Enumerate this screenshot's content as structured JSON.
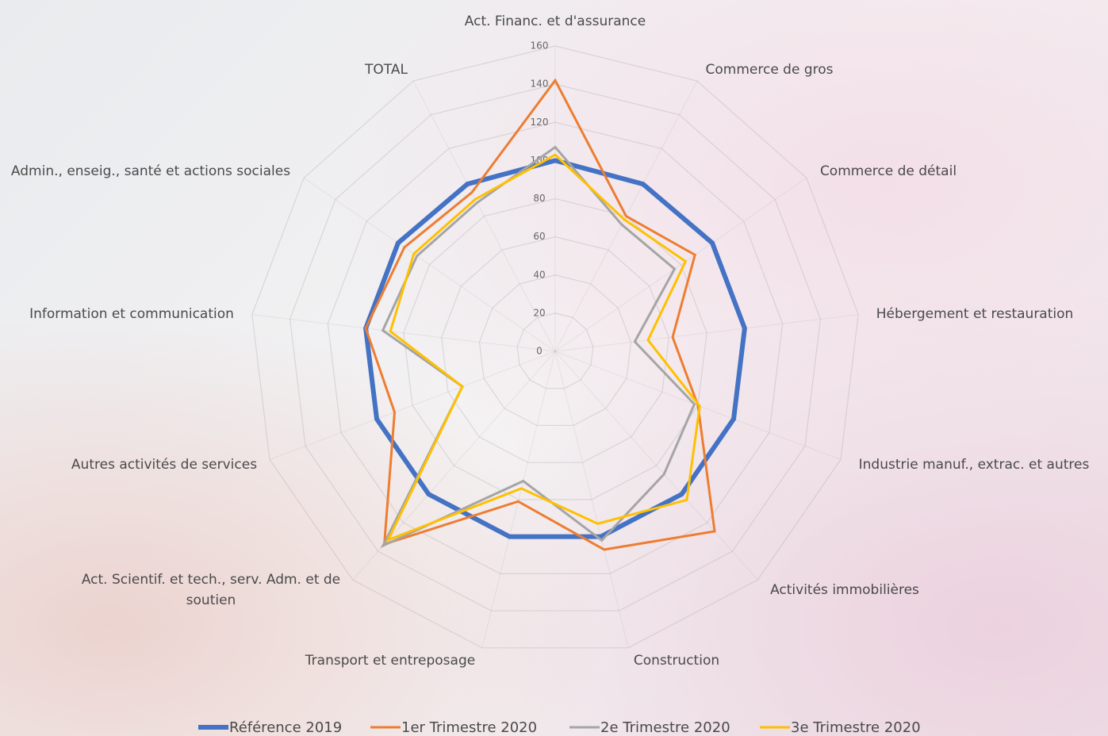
{
  "chart_data": {
    "type": "radar",
    "categories": [
      "Act. Financ. et d'assurance",
      "Commerce de gros",
      "Commerce de détail",
      "Hébergement et restauration",
      "Industrie manuf., extrac. et autres",
      "Activités immobilières",
      "Construction",
      "Transport et entreposage",
      "Act. Scientif. et tech., serv. Adm. et de soutien",
      "Autres activités de services",
      "Information et communication",
      "Admin., enseig., santé et actions sociales",
      "TOTAL"
    ],
    "series": [
      {
        "name": "Référence 2019",
        "color": "#4472c4",
        "values": [
          100,
          99,
          100,
          100,
          100,
          100,
          100,
          100,
          100,
          100,
          100,
          100,
          99
        ]
      },
      {
        "name": "1er Trimestre 2020",
        "color": "#ed7d31",
        "values": [
          142,
          80,
          89,
          62,
          80,
          126,
          107,
          81,
          135,
          90,
          100,
          96,
          94
        ]
      },
      {
        "name": "2e Trimestre 2020",
        "color": "#a5a5a5",
        "values": [
          107,
          75,
          76,
          42,
          78,
          86,
          102,
          70,
          136,
          52,
          91,
          88,
          88
        ]
      },
      {
        "name": "3e Trimestre 2020",
        "color": "#ffc000",
        "values": [
          103,
          78,
          83,
          49,
          81,
          104,
          93,
          74,
          132,
          52,
          87,
          90,
          90
        ]
      }
    ],
    "ylim": [
      0,
      160
    ],
    "yticks": [
      0,
      20,
      40,
      60,
      80,
      100,
      120,
      140,
      160
    ],
    "grid": true,
    "legend": "bottom"
  }
}
